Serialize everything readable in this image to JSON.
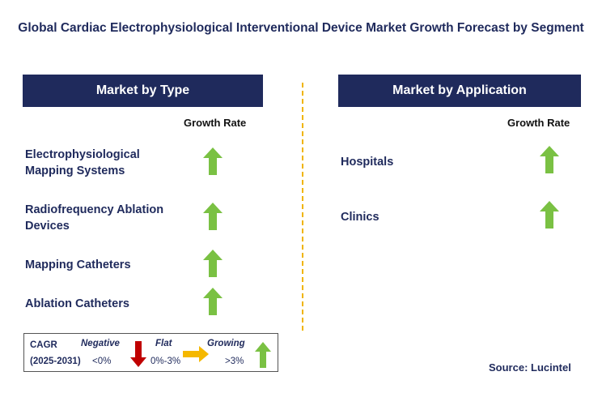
{
  "title": "Global Cardiac Electrophysiological Interventional Device Market Growth Forecast by Segment",
  "left_panel": {
    "header": "Market by Type",
    "growth_label": "Growth Rate",
    "items": [
      {
        "label": "Electrophysiological Mapping Systems",
        "trend": "growing"
      },
      {
        "label": "Radiofrequency Ablation Devices",
        "trend": "growing"
      },
      {
        "label": "Mapping Catheters",
        "trend": "growing"
      },
      {
        "label": "Ablation Catheters",
        "trend": "growing"
      }
    ]
  },
  "right_panel": {
    "header": "Market by Application",
    "growth_label": "Growth Rate",
    "items": [
      {
        "label": "Hospitals",
        "trend": "growing"
      },
      {
        "label": "Clinics",
        "trend": "growing"
      }
    ]
  },
  "legend": {
    "cagr_label": "CAGR",
    "period": "(2025-2031)",
    "negative_label": "Negative",
    "negative_range": "<0%",
    "flat_label": "Flat",
    "flat_range": "0%-3%",
    "growing_label": "Growing",
    "growing_range": ">3%"
  },
  "source": "Source: Lucintel",
  "colors": {
    "navy": "#1f2a5c",
    "growing": "#7ac143",
    "negative": "#c00000",
    "flat": "#f5b800",
    "divider": "#f0b400"
  }
}
